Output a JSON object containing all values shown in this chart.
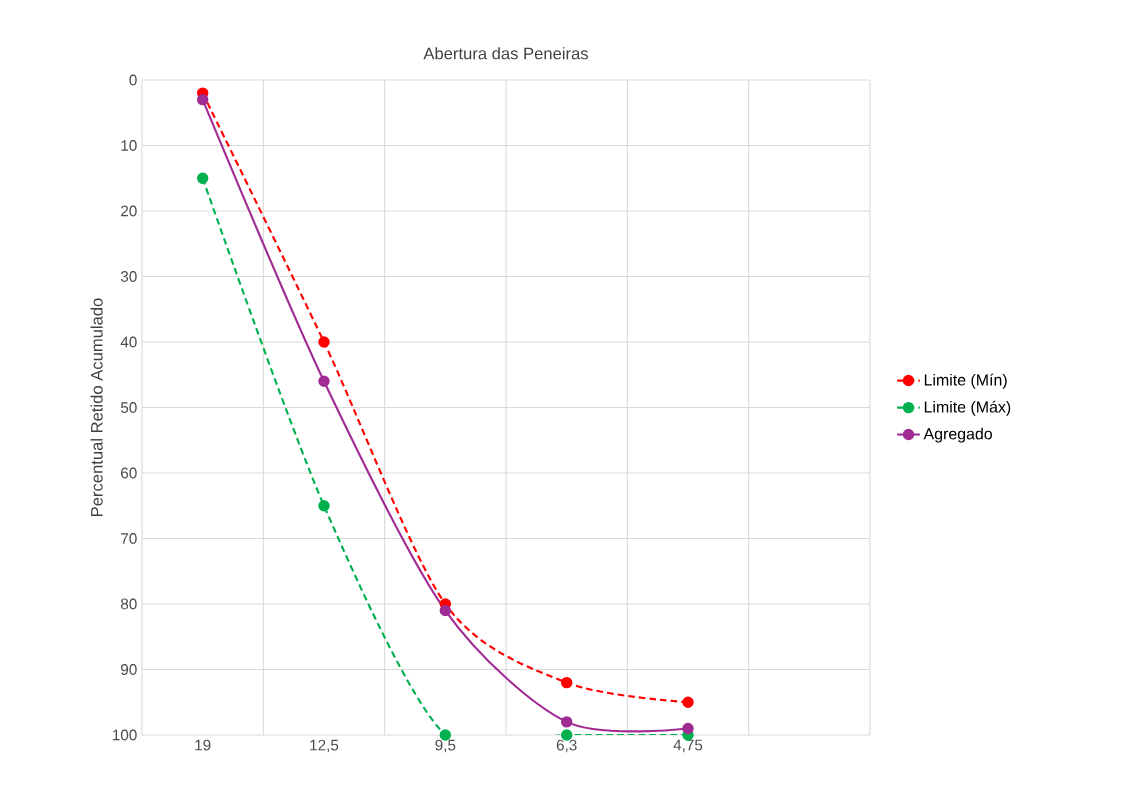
{
  "chart_data": {
    "type": "line",
    "title": "Abertura das Peneiras",
    "ylabel": "Percentual Retido Acumulado",
    "categories": [
      "19",
      "12,5",
      "9,5",
      "6,3",
      "4,75",
      null
    ],
    "series": [
      {
        "name": "Limite (Mín)",
        "color": "#ff0000",
        "line_style": "dashed",
        "values": [
          2,
          40,
          80,
          92,
          95,
          null
        ]
      },
      {
        "name": "Limite (Máx)",
        "color": "#00b050",
        "line_style": "dashed",
        "values": [
          15,
          65,
          100,
          100,
          100,
          null
        ]
      },
      {
        "name": "Agregado",
        "color": "#a02b93",
        "line_style": "solid",
        "values": [
          3,
          46,
          81,
          98,
          99,
          null
        ]
      }
    ],
    "ylim": [
      100,
      0
    ],
    "yticks": [
      0,
      10,
      20,
      30,
      40,
      50,
      60,
      70,
      80,
      90,
      100
    ],
    "grid": true,
    "legend": "right",
    "marker": "circle"
  }
}
